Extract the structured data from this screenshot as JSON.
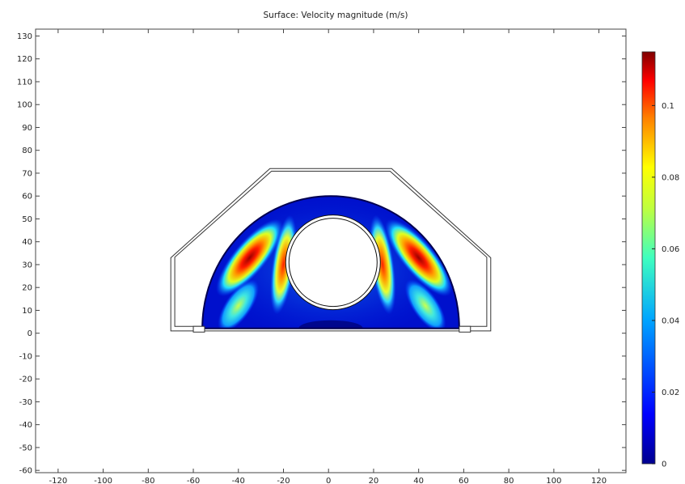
{
  "chart_data": {
    "type": "heatmap",
    "title": "Surface: Velocity magnitude (m/s)",
    "xlabel": "",
    "ylabel": "",
    "xlim": [
      -130,
      132
    ],
    "ylim": [
      -61,
      133
    ],
    "x_ticks": [
      -120,
      -100,
      -80,
      -60,
      -40,
      -20,
      0,
      20,
      40,
      60,
      80,
      100,
      120
    ],
    "y_ticks": [
      130,
      120,
      110,
      100,
      90,
      80,
      70,
      60,
      50,
      40,
      30,
      20,
      10,
      0,
      -10,
      -20,
      -30,
      -40,
      -50,
      -60
    ],
    "colorbar": {
      "min": 0,
      "max": 0.115,
      "ticks": [
        0.1,
        0.08,
        0.06,
        0.04,
        0.02,
        0
      ],
      "tick_labels": [
        "0.1",
        "0.08",
        "0.06",
        "0.04",
        "0.02",
        "0"
      ],
      "colormap": "rainbow"
    },
    "geometry": {
      "outer_boundary": [
        [
          -70,
          1
        ],
        [
          -70,
          33
        ],
        [
          -26,
          72
        ],
        [
          28,
          72
        ],
        [
          72,
          33
        ],
        [
          72,
          1
        ],
        [
          -70,
          1
        ]
      ],
      "fluid_domain_center": [
        1,
        0
      ],
      "fluid_domain_radius": 57,
      "fluid_domain_top": 60,
      "inner_cylinder_center": [
        2,
        31
      ],
      "inner_cylinder_radius": 21
    },
    "velocity_features": [
      {
        "name": "upper-left jet",
        "x": -35,
        "y": 33,
        "value": 0.105
      },
      {
        "name": "upper-right jet",
        "x": 40,
        "y": 33,
        "value": 0.105
      },
      {
        "name": "inner-left band",
        "x": -20,
        "y": 30,
        "value": 0.09
      },
      {
        "name": "inner-right band",
        "x": 24,
        "y": 30,
        "value": 0.09
      },
      {
        "name": "lower-left lobe",
        "x": -40,
        "y": 12,
        "value": 0.05
      },
      {
        "name": "lower-right lobe",
        "x": 43,
        "y": 12,
        "value": 0.05
      }
    ]
  }
}
